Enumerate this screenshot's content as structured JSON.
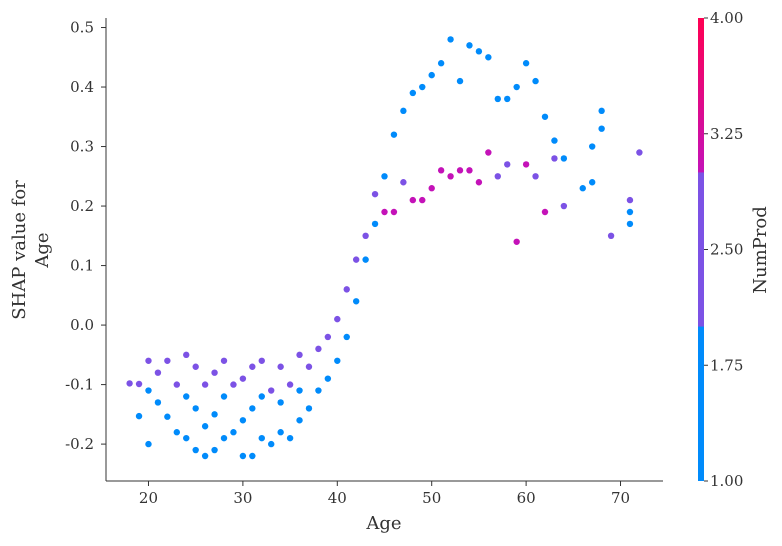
{
  "chart_data": {
    "type": "scatter",
    "title": "",
    "xlabel": "Age",
    "ylabel_lines": [
      "SHAP value for",
      "Age"
    ],
    "xlim": [
      15.5,
      74.5
    ],
    "ylim": [
      -0.262,
      0.516
    ],
    "xticks": [
      20,
      30,
      40,
      50,
      60,
      70
    ],
    "xtick_labels": [
      "20",
      "30",
      "40",
      "50",
      "60",
      "70"
    ],
    "yticks": [
      -0.2,
      -0.1,
      0.0,
      0.1,
      0.2,
      0.3,
      0.4,
      0.5
    ],
    "ytick_labels": [
      "-0.2",
      "-0.1",
      "0.0",
      "0.1",
      "0.2",
      "0.3",
      "0.4",
      "0.5"
    ],
    "grid": false,
    "colorbar": {
      "label": "NumProd",
      "min": 1.0,
      "max": 4.0,
      "ticks": [
        1.0,
        1.75,
        2.5,
        3.25,
        4.0
      ],
      "tick_labels": [
        "1.00",
        "1.75",
        "2.50",
        "3.25",
        "4.00"
      ],
      "colors": [
        "#008bfb",
        "#7c52e5",
        "#c412b8",
        "#ff0052"
      ]
    },
    "points": [
      [
        18,
        -0.098,
        2
      ],
      [
        19,
        -0.153,
        1
      ],
      [
        19,
        -0.099,
        2
      ],
      [
        20,
        -0.2,
        1
      ],
      [
        20,
        -0.11,
        1
      ],
      [
        20,
        -0.06,
        2
      ],
      [
        21,
        -0.13,
        1
      ],
      [
        21,
        -0.08,
        2
      ],
      [
        22,
        -0.154,
        1
      ],
      [
        22,
        -0.06,
        2
      ],
      [
        23,
        -0.18,
        1
      ],
      [
        23,
        -0.1,
        2
      ],
      [
        24,
        -0.19,
        1
      ],
      [
        24,
        -0.12,
        1
      ],
      [
        24,
        -0.05,
        2
      ],
      [
        25,
        -0.21,
        1
      ],
      [
        25,
        -0.14,
        1
      ],
      [
        25,
        -0.07,
        2
      ],
      [
        26,
        -0.22,
        1
      ],
      [
        26,
        -0.17,
        1
      ],
      [
        26,
        -0.1,
        2
      ],
      [
        27,
        -0.21,
        1
      ],
      [
        27,
        -0.15,
        1
      ],
      [
        27,
        -0.08,
        2
      ],
      [
        28,
        -0.19,
        1
      ],
      [
        28,
        -0.12,
        1
      ],
      [
        28,
        -0.06,
        2
      ],
      [
        29,
        -0.18,
        1
      ],
      [
        29,
        -0.1,
        2
      ],
      [
        30,
        -0.22,
        1
      ],
      [
        30,
        -0.16,
        1
      ],
      [
        30,
        -0.09,
        2
      ],
      [
        31,
        -0.22,
        1
      ],
      [
        31,
        -0.14,
        1
      ],
      [
        31,
        -0.07,
        2
      ],
      [
        32,
        -0.19,
        1
      ],
      [
        32,
        -0.12,
        1
      ],
      [
        32,
        -0.06,
        2
      ],
      [
        33,
        -0.2,
        1
      ],
      [
        33,
        -0.11,
        2
      ],
      [
        34,
        -0.18,
        1
      ],
      [
        34,
        -0.13,
        1
      ],
      [
        34,
        -0.07,
        2
      ],
      [
        35,
        -0.19,
        1
      ],
      [
        35,
        -0.1,
        2
      ],
      [
        36,
        -0.16,
        1
      ],
      [
        36,
        -0.11,
        1
      ],
      [
        36,
        -0.05,
        2
      ],
      [
        37,
        -0.14,
        1
      ],
      [
        37,
        -0.07,
        2
      ],
      [
        38,
        -0.11,
        1
      ],
      [
        38,
        -0.04,
        2
      ],
      [
        39,
        -0.09,
        1
      ],
      [
        39,
        -0.02,
        2
      ],
      [
        40,
        -0.06,
        1
      ],
      [
        40,
        0.01,
        2
      ],
      [
        41,
        -0.02,
        1
      ],
      [
        41,
        0.06,
        2
      ],
      [
        42,
        0.04,
        1
      ],
      [
        42,
        0.11,
        2
      ],
      [
        43,
        0.11,
        1
      ],
      [
        43,
        0.15,
        2
      ],
      [
        44,
        0.17,
        1
      ],
      [
        44,
        0.22,
        2
      ],
      [
        45,
        0.25,
        1
      ],
      [
        45,
        0.19,
        3
      ],
      [
        46,
        0.32,
        1
      ],
      [
        46,
        0.19,
        3
      ],
      [
        47,
        0.36,
        1
      ],
      [
        47,
        0.24,
        2
      ],
      [
        48,
        0.39,
        1
      ],
      [
        48,
        0.21,
        3
      ],
      [
        49,
        0.4,
        1
      ],
      [
        49,
        0.21,
        3
      ],
      [
        50,
        0.42,
        1
      ],
      [
        50,
        0.23,
        3
      ],
      [
        51,
        0.44,
        1
      ],
      [
        51,
        0.26,
        3
      ],
      [
        52,
        0.48,
        1
      ],
      [
        52,
        0.25,
        3
      ],
      [
        53,
        0.41,
        1
      ],
      [
        53,
        0.26,
        3
      ],
      [
        54,
        0.47,
        1
      ],
      [
        54,
        0.26,
        3
      ],
      [
        55,
        0.46,
        1
      ],
      [
        55,
        0.24,
        3
      ],
      [
        56,
        0.45,
        1
      ],
      [
        56,
        0.29,
        3
      ],
      [
        57,
        0.38,
        1
      ],
      [
        57,
        0.25,
        2
      ],
      [
        58,
        0.38,
        1
      ],
      [
        58,
        0.27,
        2
      ],
      [
        59,
        0.4,
        1
      ],
      [
        59,
        0.14,
        3
      ],
      [
        60,
        0.44,
        1
      ],
      [
        60,
        0.27,
        3
      ],
      [
        61,
        0.41,
        1
      ],
      [
        61,
        0.25,
        2
      ],
      [
        62,
        0.35,
        1
      ],
      [
        62,
        0.19,
        3
      ],
      [
        63,
        0.31,
        1
      ],
      [
        63,
        0.28,
        2
      ],
      [
        64,
        0.28,
        1
      ],
      [
        64,
        0.2,
        2
      ],
      [
        66,
        0.23,
        1
      ],
      [
        67,
        0.3,
        1
      ],
      [
        67,
        0.24,
        1
      ],
      [
        68,
        0.36,
        1
      ],
      [
        68,
        0.33,
        1
      ],
      [
        69,
        0.15,
        2
      ],
      [
        71,
        0.19,
        1
      ],
      [
        71,
        0.17,
        1
      ],
      [
        71,
        0.21,
        2
      ],
      [
        72,
        0.29,
        2
      ]
    ]
  }
}
